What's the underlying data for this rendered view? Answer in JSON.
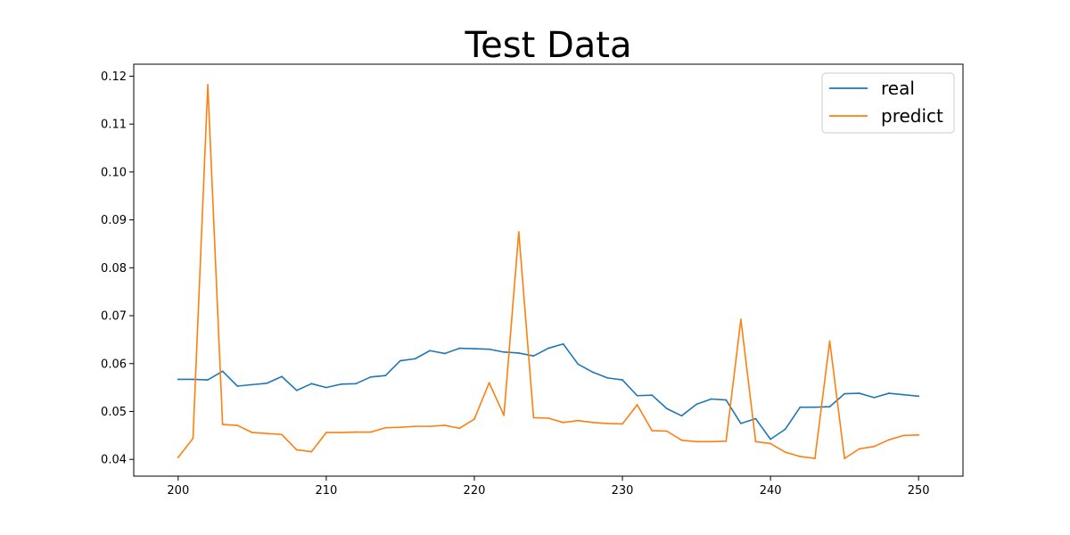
{
  "chart_data": {
    "type": "line",
    "title": "Test Data",
    "xlabel": "",
    "ylabel": "",
    "xlim": [
      197,
      253
    ],
    "ylim": [
      0.0365,
      0.1225
    ],
    "xticks": [
      200,
      210,
      220,
      230,
      240,
      250
    ],
    "xtick_labels": [
      "200",
      "210",
      "220",
      "230",
      "240",
      "250"
    ],
    "yticks": [
      0.04,
      0.05,
      0.06,
      0.07,
      0.08,
      0.09,
      0.1,
      0.11,
      0.12
    ],
    "ytick_labels": [
      "0.04",
      "0.05",
      "0.06",
      "0.07",
      "0.08",
      "0.09",
      "0.10",
      "0.11",
      "0.12"
    ],
    "grid": false,
    "legend_position": "top-right",
    "x": [
      200,
      201,
      202,
      203,
      204,
      205,
      206,
      207,
      208,
      209,
      210,
      211,
      212,
      213,
      214,
      215,
      216,
      217,
      218,
      219,
      220,
      221,
      222,
      223,
      224,
      225,
      226,
      227,
      228,
      229,
      230,
      231,
      232,
      233,
      234,
      235,
      236,
      237,
      238,
      239,
      240,
      241,
      242,
      243,
      244,
      245,
      246,
      247,
      248,
      249,
      250
    ],
    "series": [
      {
        "name": "real",
        "color": "#1f77b4",
        "values": [
          0.0567,
          0.0567,
          0.0566,
          0.0584,
          0.0553,
          0.0556,
          0.0559,
          0.0573,
          0.0544,
          0.0558,
          0.055,
          0.0557,
          0.0558,
          0.0572,
          0.0575,
          0.0606,
          0.061,
          0.0627,
          0.0621,
          0.0632,
          0.0631,
          0.063,
          0.0624,
          0.0622,
          0.0616,
          0.0632,
          0.0641,
          0.0599,
          0.0582,
          0.057,
          0.0566,
          0.0533,
          0.0534,
          0.0506,
          0.0491,
          0.0515,
          0.0526,
          0.0524,
          0.0475,
          0.0485,
          0.0442,
          0.0463,
          0.0509,
          0.0509,
          0.051,
          0.0537,
          0.0538,
          0.0529,
          0.0538,
          0.0535,
          0.0532
        ]
      },
      {
        "name": "predict",
        "color": "#ff7f0e",
        "values": [
          0.0404,
          0.0444,
          0.1182,
          0.0473,
          0.0471,
          0.0456,
          0.0454,
          0.0452,
          0.042,
          0.0416,
          0.0456,
          0.0456,
          0.0457,
          0.0457,
          0.0466,
          0.0467,
          0.0469,
          0.0469,
          0.0471,
          0.0465,
          0.0484,
          0.056,
          0.0492,
          0.0875,
          0.0487,
          0.0486,
          0.0477,
          0.0481,
          0.0477,
          0.0475,
          0.0474,
          0.0514,
          0.046,
          0.0459,
          0.044,
          0.0437,
          0.0437,
          0.0438,
          0.0692,
          0.0437,
          0.0433,
          0.0415,
          0.0406,
          0.0402,
          0.0647,
          0.0402,
          0.0422,
          0.0427,
          0.0441,
          0.045,
          0.0451
        ]
      }
    ]
  }
}
